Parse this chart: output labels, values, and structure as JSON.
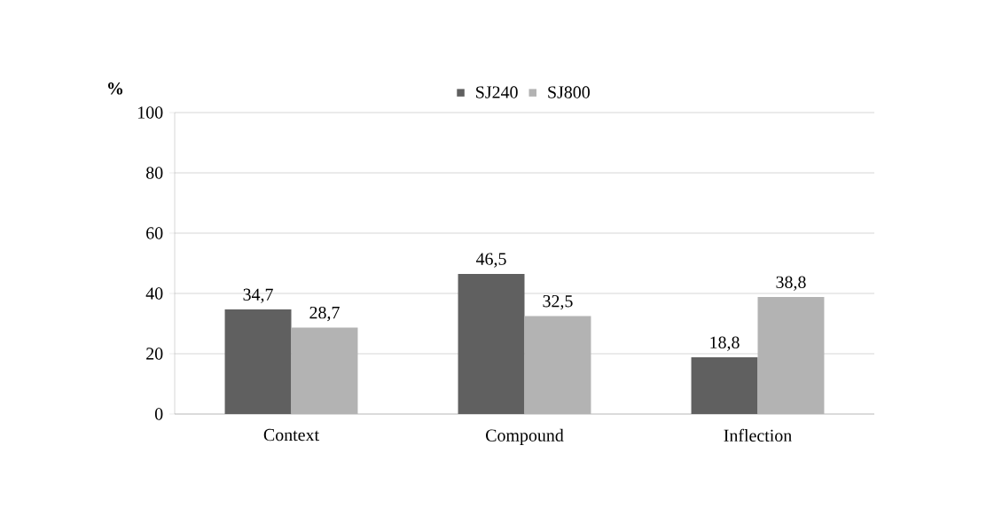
{
  "chart_data": {
    "type": "bar",
    "ylabel": "%",
    "categories": [
      "Context",
      "Compound",
      "Inflection"
    ],
    "series": [
      {
        "name": "SJ240",
        "color": "#606060",
        "values": [
          34.7,
          46.5,
          18.8
        ],
        "value_labels": [
          "34,7",
          "46,5",
          "18,8"
        ]
      },
      {
        "name": "SJ800",
        "color": "#b3b3b3",
        "values": [
          28.7,
          32.5,
          38.8
        ],
        "value_labels": [
          "28,7",
          "32,5",
          "38,8"
        ]
      }
    ],
    "ylim": [
      0,
      100
    ],
    "yticks": [
      0,
      20,
      40,
      60,
      80,
      100
    ],
    "grid": "y",
    "legend": "top"
  }
}
